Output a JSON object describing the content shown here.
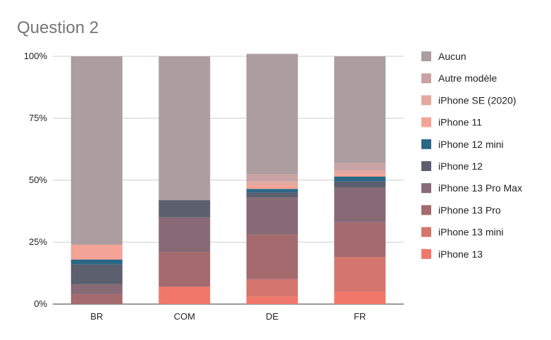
{
  "chart_data": {
    "type": "bar",
    "stacked": true,
    "normalized": true,
    "title": "Question 2",
    "categories": [
      "BR",
      "COM",
      "DE",
      "FR"
    ],
    "y_ticks": [
      "0%",
      "25%",
      "50%",
      "75%",
      "100%"
    ],
    "ylim": [
      0,
      100
    ],
    "grid": true,
    "legend_position": "right",
    "series": [
      {
        "name": "iPhone 13",
        "color": "#f1776a",
        "values": [
          0,
          7,
          3,
          5
        ]
      },
      {
        "name": "iPhone 13 mini",
        "color": "#d4766e",
        "values": [
          0,
          0,
          7,
          14
        ]
      },
      {
        "name": "iPhone 13 Pro",
        "color": "#a46a6e",
        "values": [
          4,
          14,
          18,
          14
        ]
      },
      {
        "name": "iPhone 13 Pro Max",
        "color": "#876a75",
        "values": [
          4,
          14,
          15,
          14
        ]
      },
      {
        "name": "iPhone 12",
        "color": "#5c5f6e",
        "values": [
          8,
          7,
          2,
          2.5
        ]
      },
      {
        "name": "iPhone 12 mini",
        "color": "#2a6785",
        "values": [
          2,
          0,
          1.5,
          2
        ]
      },
      {
        "name": "iPhone 11",
        "color": "#f4a397",
        "values": [
          6,
          0,
          1.5,
          1
        ]
      },
      {
        "name": "iPhone SE (2020)",
        "color": "#e2a89f",
        "values": [
          0,
          0,
          1.5,
          1.5
        ]
      },
      {
        "name": "Autre modèle",
        "color": "#c8a2a4",
        "values": [
          0,
          0,
          3,
          3
        ]
      },
      {
        "name": "Aucun",
        "color": "#ac9da0",
        "values": [
          76,
          58,
          48.5,
          43
        ]
      }
    ]
  }
}
